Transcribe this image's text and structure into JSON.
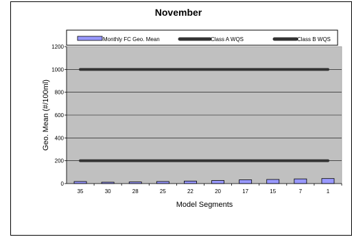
{
  "chart_data": {
    "type": "bar",
    "title": "November",
    "xlabel": "Model Segments",
    "ylabel": "Geo. Mean (#/100ml)",
    "categories": [
      "35",
      "30",
      "28",
      "25",
      "22",
      "20",
      "17",
      "15",
      "7",
      "1"
    ],
    "series": [
      {
        "name": "Monthly FC Geo. Mean",
        "type": "bar",
        "values": [
          18,
          12,
          14,
          18,
          22,
          27,
          33,
          36,
          41,
          44
        ],
        "color": "#9999ff"
      }
    ],
    "reference_lines": [
      {
        "name": "Class A WQS",
        "value": 200,
        "color": "#333333"
      },
      {
        "name": "Class B WQS",
        "value": 1000,
        "color": "#333333"
      }
    ],
    "yticks": [
      0,
      200,
      400,
      600,
      800,
      1000,
      1200
    ],
    "ylim": [
      0,
      1200
    ],
    "grid": true,
    "legend_position": "top",
    "plot_background": "#c0c0c0"
  }
}
